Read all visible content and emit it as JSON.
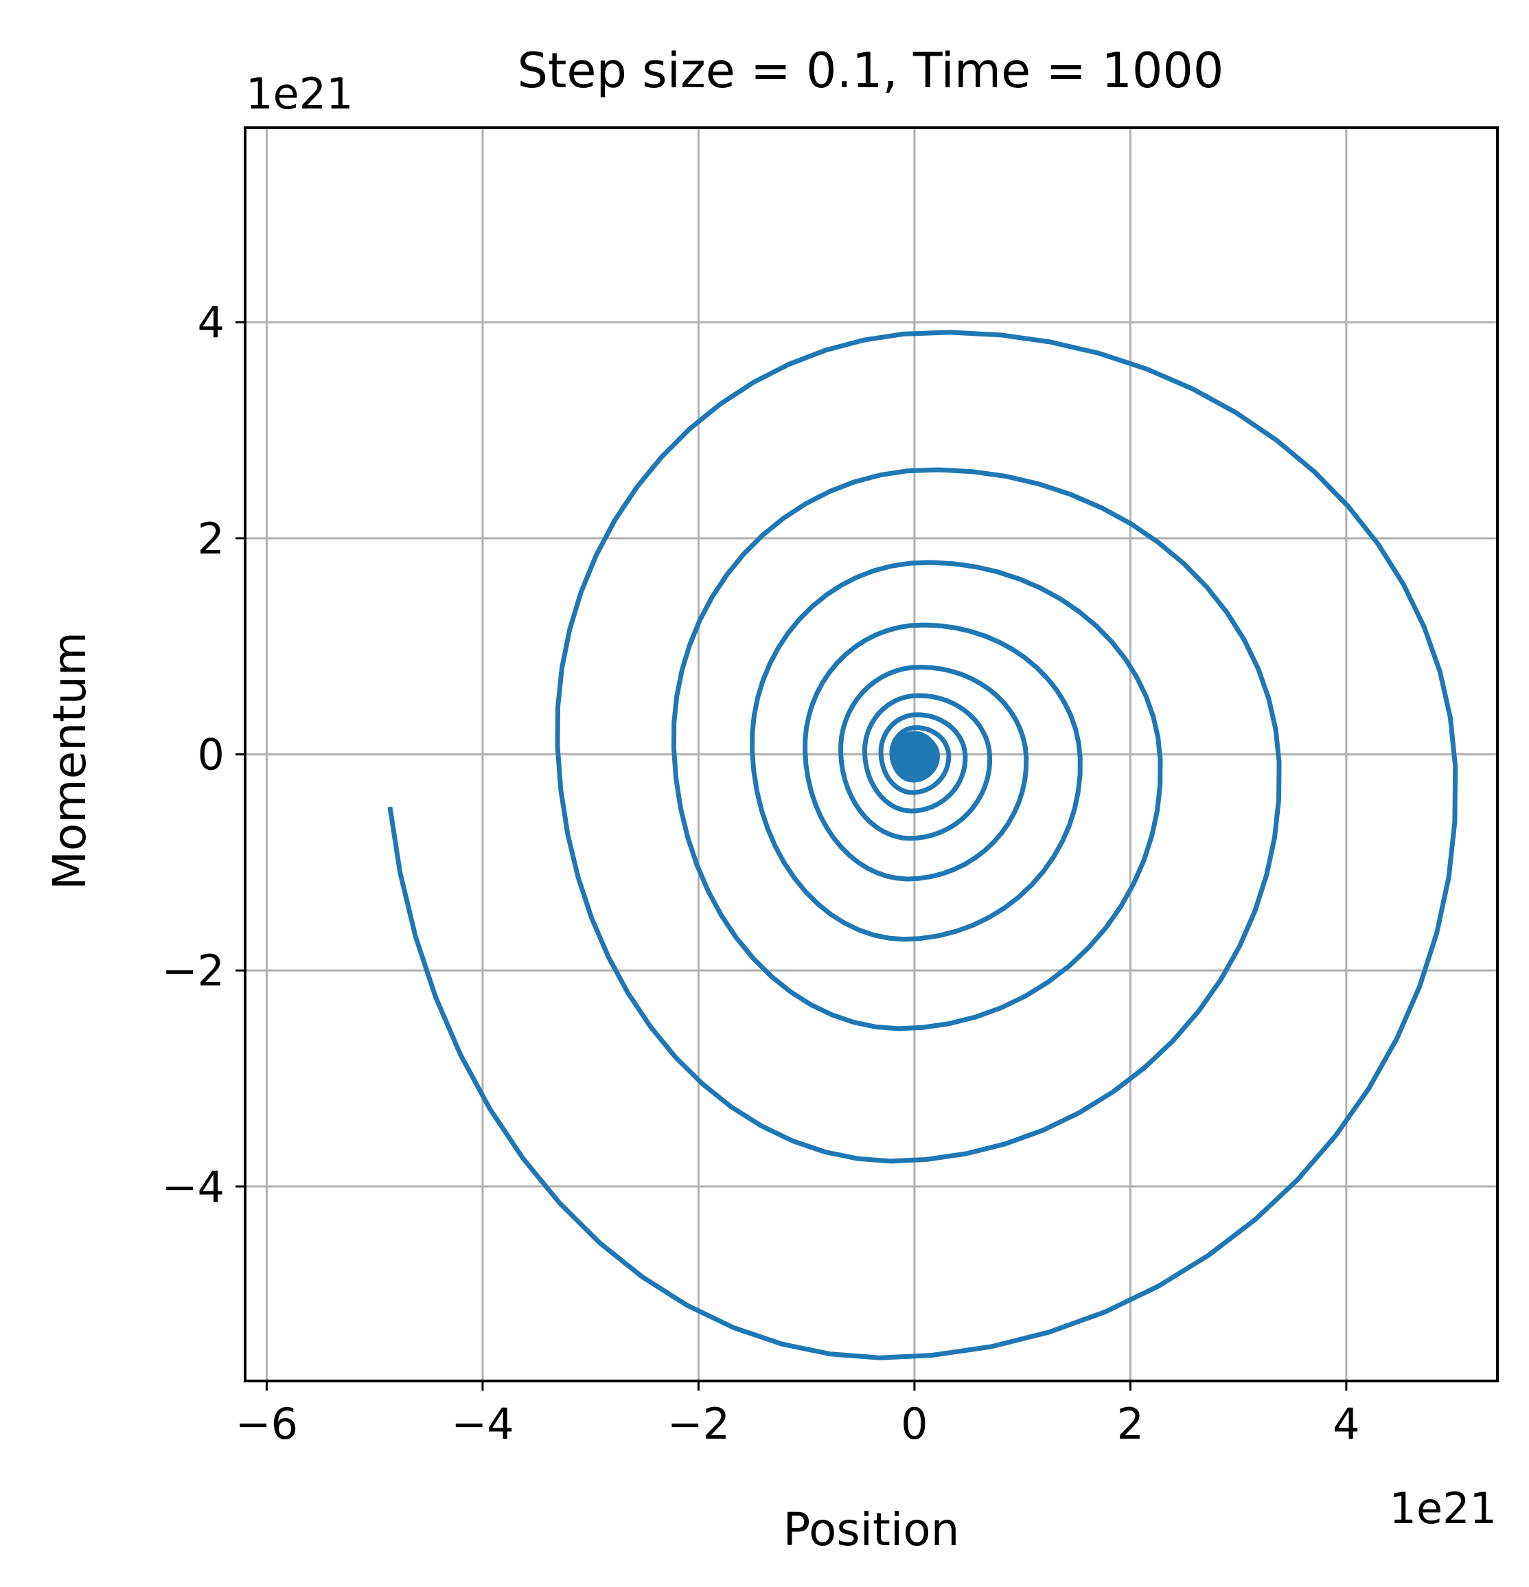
{
  "chart_data": {
    "type": "line",
    "title": "Step size = 0.1, Time = 1000",
    "xlabel": "Position",
    "ylabel": "Momentum",
    "x_offset_label": "1e21",
    "y_offset_label": "1e21",
    "xlim": [
      -6.2,
      5.4
    ],
    "ylim": [
      -5.8,
      5.8
    ],
    "xticks": [
      -6,
      -4,
      -2,
      0,
      2,
      4
    ],
    "yticks": [
      -4,
      -2,
      0,
      2,
      4
    ],
    "xtick_labels": [
      "−6",
      "−4",
      "−2",
      "0",
      "2",
      "4"
    ],
    "ytick_labels": [
      "−4",
      "−2",
      "0",
      "2",
      "4"
    ],
    "grid": true,
    "legend": "none",
    "series": [
      {
        "color": "#1f77b4",
        "spiral": {
          "start": {
            "x": -5.65,
            "y": -0.45
          },
          "turns": 12,
          "center": {
            "x": 0.0,
            "y": 0.0
          },
          "direction": "clockwise",
          "peaks": {
            "right_x": [
              4.9,
              3.6,
              2.6,
              1.9,
              1.4,
              1.0,
              0.72,
              0.55,
              0.42,
              0.32
            ],
            "top_y": [
              4.53,
              3.3,
              2.42,
              1.77,
              1.28,
              0.95,
              0.7,
              0.52,
              0.4
            ],
            "left_x": [
              -4.2,
              -3.05,
              -2.25,
              -1.63,
              -1.18,
              -0.88,
              -0.64,
              -0.47
            ],
            "bottom_y": [
              -5.3,
              -3.85,
              -2.82,
              -2.05,
              -1.5,
              -1.1,
              -0.82,
              -0.6
            ]
          }
        }
      }
    ]
  }
}
